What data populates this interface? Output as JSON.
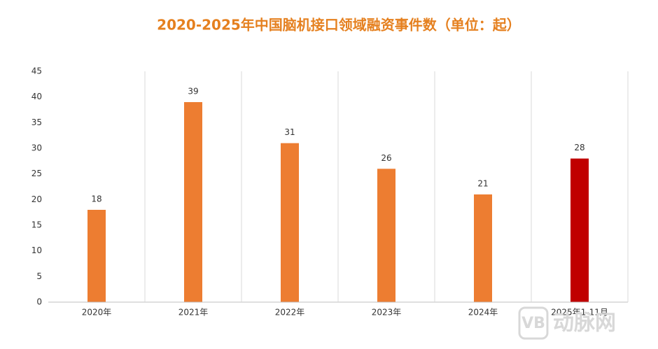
{
  "chart_data": {
    "type": "bar",
    "title": "2020-2025年中国脑机接口领域融资事件数（单位：起）",
    "categories": [
      "2020年",
      "2021年",
      "2022年",
      "2023年",
      "2024年",
      "2025年1-11月"
    ],
    "values": [
      18,
      39,
      31,
      26,
      21,
      28
    ],
    "colors": [
      "#ed7d31",
      "#ed7d31",
      "#ed7d31",
      "#ed7d31",
      "#ed7d31",
      "#c00000"
    ],
    "ylim": [
      0,
      45
    ],
    "yticks": [
      0,
      5,
      10,
      15,
      20,
      25,
      30,
      35,
      40,
      45
    ],
    "watermark_logo": "VB",
    "watermark": "动脉网"
  }
}
